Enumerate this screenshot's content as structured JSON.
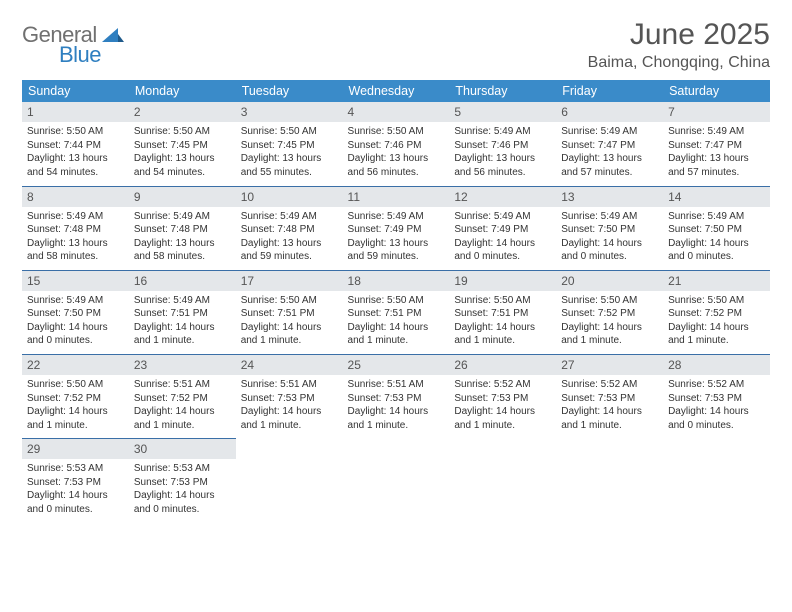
{
  "logo": {
    "gray": "General",
    "blue": "Blue"
  },
  "title": "June 2025",
  "location": "Baima, Chongqing, China",
  "colors": {
    "header_bg": "#3a8bc9",
    "rule": "#3a6fa7",
    "daynum_bg": "#e4e7ea",
    "text": "#333333",
    "logo_gray": "#707070",
    "logo_blue": "#2f7fc0"
  },
  "weekdays": [
    "Sunday",
    "Monday",
    "Tuesday",
    "Wednesday",
    "Thursday",
    "Friday",
    "Saturday"
  ],
  "weeks": [
    [
      {
        "day": "1",
        "sunrise": "5:50 AM",
        "sunset": "7:44 PM",
        "daylight": "13 hours and 54 minutes."
      },
      {
        "day": "2",
        "sunrise": "5:50 AM",
        "sunset": "7:45 PM",
        "daylight": "13 hours and 54 minutes."
      },
      {
        "day": "3",
        "sunrise": "5:50 AM",
        "sunset": "7:45 PM",
        "daylight": "13 hours and 55 minutes."
      },
      {
        "day": "4",
        "sunrise": "5:50 AM",
        "sunset": "7:46 PM",
        "daylight": "13 hours and 56 minutes."
      },
      {
        "day": "5",
        "sunrise": "5:49 AM",
        "sunset": "7:46 PM",
        "daylight": "13 hours and 56 minutes."
      },
      {
        "day": "6",
        "sunrise": "5:49 AM",
        "sunset": "7:47 PM",
        "daylight": "13 hours and 57 minutes."
      },
      {
        "day": "7",
        "sunrise": "5:49 AM",
        "sunset": "7:47 PM",
        "daylight": "13 hours and 57 minutes."
      }
    ],
    [
      {
        "day": "8",
        "sunrise": "5:49 AM",
        "sunset": "7:48 PM",
        "daylight": "13 hours and 58 minutes."
      },
      {
        "day": "9",
        "sunrise": "5:49 AM",
        "sunset": "7:48 PM",
        "daylight": "13 hours and 58 minutes."
      },
      {
        "day": "10",
        "sunrise": "5:49 AM",
        "sunset": "7:48 PM",
        "daylight": "13 hours and 59 minutes."
      },
      {
        "day": "11",
        "sunrise": "5:49 AM",
        "sunset": "7:49 PM",
        "daylight": "13 hours and 59 minutes."
      },
      {
        "day": "12",
        "sunrise": "5:49 AM",
        "sunset": "7:49 PM",
        "daylight": "14 hours and 0 minutes."
      },
      {
        "day": "13",
        "sunrise": "5:49 AM",
        "sunset": "7:50 PM",
        "daylight": "14 hours and 0 minutes."
      },
      {
        "day": "14",
        "sunrise": "5:49 AM",
        "sunset": "7:50 PM",
        "daylight": "14 hours and 0 minutes."
      }
    ],
    [
      {
        "day": "15",
        "sunrise": "5:49 AM",
        "sunset": "7:50 PM",
        "daylight": "14 hours and 0 minutes."
      },
      {
        "day": "16",
        "sunrise": "5:49 AM",
        "sunset": "7:51 PM",
        "daylight": "14 hours and 1 minute."
      },
      {
        "day": "17",
        "sunrise": "5:50 AM",
        "sunset": "7:51 PM",
        "daylight": "14 hours and 1 minute."
      },
      {
        "day": "18",
        "sunrise": "5:50 AM",
        "sunset": "7:51 PM",
        "daylight": "14 hours and 1 minute."
      },
      {
        "day": "19",
        "sunrise": "5:50 AM",
        "sunset": "7:51 PM",
        "daylight": "14 hours and 1 minute."
      },
      {
        "day": "20",
        "sunrise": "5:50 AM",
        "sunset": "7:52 PM",
        "daylight": "14 hours and 1 minute."
      },
      {
        "day": "21",
        "sunrise": "5:50 AM",
        "sunset": "7:52 PM",
        "daylight": "14 hours and 1 minute."
      }
    ],
    [
      {
        "day": "22",
        "sunrise": "5:50 AM",
        "sunset": "7:52 PM",
        "daylight": "14 hours and 1 minute."
      },
      {
        "day": "23",
        "sunrise": "5:51 AM",
        "sunset": "7:52 PM",
        "daylight": "14 hours and 1 minute."
      },
      {
        "day": "24",
        "sunrise": "5:51 AM",
        "sunset": "7:53 PM",
        "daylight": "14 hours and 1 minute."
      },
      {
        "day": "25",
        "sunrise": "5:51 AM",
        "sunset": "7:53 PM",
        "daylight": "14 hours and 1 minute."
      },
      {
        "day": "26",
        "sunrise": "5:52 AM",
        "sunset": "7:53 PM",
        "daylight": "14 hours and 1 minute."
      },
      {
        "day": "27",
        "sunrise": "5:52 AM",
        "sunset": "7:53 PM",
        "daylight": "14 hours and 1 minute."
      },
      {
        "day": "28",
        "sunrise": "5:52 AM",
        "sunset": "7:53 PM",
        "daylight": "14 hours and 0 minutes."
      }
    ],
    [
      {
        "day": "29",
        "sunrise": "5:53 AM",
        "sunset": "7:53 PM",
        "daylight": "14 hours and 0 minutes."
      },
      {
        "day": "30",
        "sunrise": "5:53 AM",
        "sunset": "7:53 PM",
        "daylight": "14 hours and 0 minutes."
      },
      null,
      null,
      null,
      null,
      null
    ]
  ],
  "labels": {
    "sunrise": "Sunrise: ",
    "sunset": "Sunset: ",
    "daylight": "Daylight: "
  }
}
